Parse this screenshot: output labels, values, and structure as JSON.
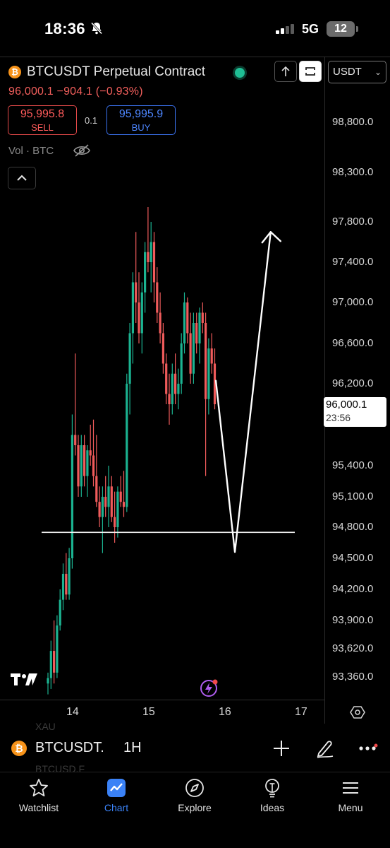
{
  "status": {
    "time": "18:36",
    "network": "5G",
    "battery": "12"
  },
  "header": {
    "symbol_title": "BTCUSDT Perpetual Contract",
    "price_line": "96,000.1  −904.1  (−0.93%)",
    "sell": {
      "price": "95,995.8",
      "label": "SELL"
    },
    "buy": {
      "price": "95,995.9",
      "label": "BUY"
    },
    "spread": "0.1",
    "volume_label": "Vol · BTC",
    "currency": "USDT"
  },
  "price_axis": {
    "ticks": [
      "98,800.0",
      "98,300.0",
      "97,800.0",
      "97,400.0",
      "97,000.0",
      "96,600.0",
      "96,200.0",
      "95,400.0",
      "95,100.0",
      "94,800.0",
      "94,500.0",
      "94,200.0",
      "93,900.0",
      "93,620.0",
      "93,360.0"
    ],
    "current_price": "96,000.1",
    "countdown": "23:56"
  },
  "time_axis": {
    "ticks": [
      "14",
      "15",
      "16",
      "17"
    ]
  },
  "chart_data": {
    "type": "candlestick",
    "timeframe": "1H",
    "symbol": "BTCUSDT",
    "y_ticks": [
      98800,
      98300,
      97800,
      97400,
      97000,
      96600,
      96200,
      95400,
      95100,
      94800,
      94500,
      94200,
      93900,
      93620,
      93360
    ],
    "x_ticks": [
      "14",
      "15",
      "16",
      "17"
    ],
    "current_price": 96000.1,
    "support_level": 94750,
    "annotation_arrow": [
      {
        "x": 15.88,
        "y": 96230
      },
      {
        "x": 16.13,
        "y": 94560
      },
      {
        "x": 16.6,
        "y": 97700
      }
    ],
    "candles": [
      {
        "o": 93300,
        "h": 93400,
        "l": 93200,
        "c": 93350
      },
      {
        "o": 93350,
        "h": 93700,
        "l": 93250,
        "c": 93600
      },
      {
        "o": 93600,
        "h": 93900,
        "l": 93300,
        "c": 93400
      },
      {
        "o": 93400,
        "h": 93950,
        "l": 93350,
        "c": 93850
      },
      {
        "o": 93850,
        "h": 94200,
        "l": 93800,
        "c": 94100
      },
      {
        "o": 94100,
        "h": 94450,
        "l": 94000,
        "c": 94350
      },
      {
        "o": 94350,
        "h": 94550,
        "l": 94100,
        "c": 94150
      },
      {
        "o": 94150,
        "h": 94600,
        "l": 94100,
        "c": 94500
      },
      {
        "o": 94500,
        "h": 95900,
        "l": 94400,
        "c": 95700
      },
      {
        "o": 95700,
        "h": 96500,
        "l": 95500,
        "c": 95600
      },
      {
        "o": 95600,
        "h": 95700,
        "l": 95100,
        "c": 95200
      },
      {
        "o": 95200,
        "h": 95700,
        "l": 95100,
        "c": 95600
      },
      {
        "o": 95600,
        "h": 95700,
        "l": 95200,
        "c": 95300
      },
      {
        "o": 95300,
        "h": 95600,
        "l": 95100,
        "c": 95550
      },
      {
        "o": 95550,
        "h": 95800,
        "l": 95400,
        "c": 95500
      },
      {
        "o": 95500,
        "h": 95850,
        "l": 95200,
        "c": 95300
      },
      {
        "o": 95300,
        "h": 95700,
        "l": 95000,
        "c": 95050
      },
      {
        "o": 95050,
        "h": 95200,
        "l": 94800,
        "c": 94900
      },
      {
        "o": 94900,
        "h": 95200,
        "l": 94550,
        "c": 95100
      },
      {
        "o": 95100,
        "h": 95300,
        "l": 94900,
        "c": 95000
      },
      {
        "o": 95000,
        "h": 95400,
        "l": 94800,
        "c": 95200
      },
      {
        "o": 95200,
        "h": 95300,
        "l": 94850,
        "c": 94900
      },
      {
        "o": 94900,
        "h": 95150,
        "l": 94650,
        "c": 94800
      },
      {
        "o": 94800,
        "h": 95200,
        "l": 94700,
        "c": 95150
      },
      {
        "o": 95150,
        "h": 95300,
        "l": 95000,
        "c": 95050
      },
      {
        "o": 95050,
        "h": 95350,
        "l": 94900,
        "c": 95000
      },
      {
        "o": 95000,
        "h": 96300,
        "l": 94950,
        "c": 96200
      },
      {
        "o": 96200,
        "h": 96800,
        "l": 95900,
        "c": 96700
      },
      {
        "o": 96700,
        "h": 97300,
        "l": 96400,
        "c": 97200
      },
      {
        "o": 97200,
        "h": 97700,
        "l": 96800,
        "c": 97000
      },
      {
        "o": 97000,
        "h": 97300,
        "l": 96600,
        "c": 96700
      },
      {
        "o": 96700,
        "h": 97200,
        "l": 96500,
        "c": 97100
      },
      {
        "o": 97100,
        "h": 97600,
        "l": 96900,
        "c": 97500
      },
      {
        "o": 97500,
        "h": 97950,
        "l": 97300,
        "c": 97400
      },
      {
        "o": 97400,
        "h": 97800,
        "l": 97100,
        "c": 97600
      },
      {
        "o": 97600,
        "h": 97700,
        "l": 97000,
        "c": 97200
      },
      {
        "o": 97200,
        "h": 97350,
        "l": 96800,
        "c": 96900
      },
      {
        "o": 96900,
        "h": 97100,
        "l": 96600,
        "c": 96700
      },
      {
        "o": 96700,
        "h": 96800,
        "l": 96300,
        "c": 96400
      },
      {
        "o": 96400,
        "h": 96500,
        "l": 96000,
        "c": 96100
      },
      {
        "o": 96100,
        "h": 96300,
        "l": 95800,
        "c": 96000
      },
      {
        "o": 96000,
        "h": 96400,
        "l": 95900,
        "c": 96300
      },
      {
        "o": 96300,
        "h": 96500,
        "l": 96000,
        "c": 96100
      },
      {
        "o": 96100,
        "h": 96350,
        "l": 95950,
        "c": 96200
      },
      {
        "o": 96200,
        "h": 96700,
        "l": 96100,
        "c": 96600
      },
      {
        "o": 96600,
        "h": 97100,
        "l": 96500,
        "c": 97000
      },
      {
        "o": 97000,
        "h": 97050,
        "l": 96600,
        "c": 96700
      },
      {
        "o": 96700,
        "h": 96900,
        "l": 96200,
        "c": 96300
      },
      {
        "o": 96300,
        "h": 96900,
        "l": 96200,
        "c": 96800
      },
      {
        "o": 96800,
        "h": 96900,
        "l": 96500,
        "c": 96600
      },
      {
        "o": 96600,
        "h": 96950,
        "l": 96400,
        "c": 96900
      },
      {
        "o": 96900,
        "h": 97000,
        "l": 96700,
        "c": 96800
      },
      {
        "o": 96800,
        "h": 96900,
        "l": 95300,
        "c": 96050
      },
      {
        "o": 96050,
        "h": 96650,
        "l": 95900,
        "c": 96550
      },
      {
        "o": 96550,
        "h": 96700,
        "l": 96300,
        "c": 96400
      },
      {
        "o": 96400,
        "h": 96550,
        "l": 95950,
        "c": 96000
      }
    ]
  },
  "symbol_bar": {
    "ghost_top": "XAU",
    "ghost_bottom": "BTCUSD.F",
    "symbol": "BTCUSDT.",
    "timeframe": "1H"
  },
  "nav": {
    "watchlist": "Watchlist",
    "chart": "Chart",
    "explore": "Explore",
    "ideas": "Ideas",
    "menu": "Menu"
  },
  "colors": {
    "up": "#1bb391",
    "down": "#f05b5b",
    "accent": "#3b82f6"
  }
}
